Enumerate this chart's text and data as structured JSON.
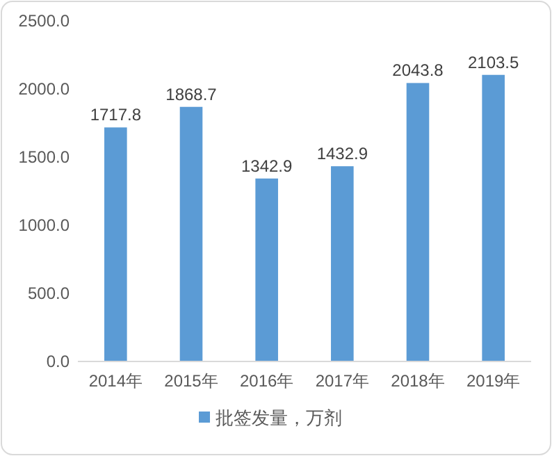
{
  "chart_data": {
    "type": "bar",
    "categories": [
      "2014年",
      "2015年",
      "2016年",
      "2017年",
      "2018年",
      "2019年"
    ],
    "series": [
      {
        "name": "批签发量，万剂",
        "color": "#5b9bd5",
        "values": [
          1717.8,
          1868.7,
          1342.9,
          1432.9,
          2043.8,
          2103.5
        ]
      }
    ],
    "ylim": [
      0,
      2500
    ],
    "yticks": [
      {
        "value": 0,
        "label": "0.0"
      },
      {
        "value": 500,
        "label": "500.0"
      },
      {
        "value": 1000,
        "label": "1000.0"
      },
      {
        "value": 1500,
        "label": "1500.0"
      },
      {
        "value": 2000,
        "label": "2000.0"
      },
      {
        "value": 2500,
        "label": "2500.0"
      }
    ],
    "data_labels": true,
    "legend": "bottom"
  }
}
